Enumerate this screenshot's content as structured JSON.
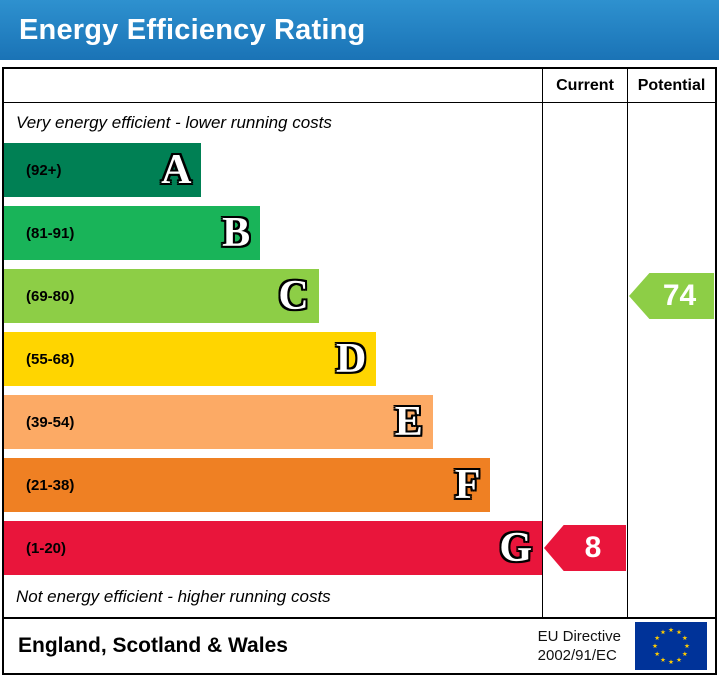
{
  "title": "Energy Efficiency Rating",
  "header": {
    "current_label": "Current",
    "potential_label": "Potential"
  },
  "notes": {
    "top": "Very energy efficient - lower running costs",
    "bottom": "Not energy efficient - higher running costs"
  },
  "chart_data": {
    "type": "bar",
    "subtype": "epc-energy-efficiency-rating",
    "bands": [
      {
        "letter": "A",
        "range": "(92+)",
        "color": "#008054",
        "width_pct": 36.7
      },
      {
        "letter": "B",
        "range": "(81-91)",
        "color": "#19b459",
        "width_pct": 47.6
      },
      {
        "letter": "C",
        "range": "(69-80)",
        "color": "#8dce46",
        "width_pct": 58.5
      },
      {
        "letter": "D",
        "range": "(55-68)",
        "color": "#ffd500",
        "width_pct": 69.2
      },
      {
        "letter": "E",
        "range": "(39-54)",
        "color": "#fcaa65",
        "width_pct": 79.7
      },
      {
        "letter": "F",
        "range": "(21-38)",
        "color": "#ef8023",
        "width_pct": 90.4
      },
      {
        "letter": "G",
        "range": "(1-20)",
        "color": "#e9153b",
        "width_pct": 100
      }
    ],
    "current": {
      "value": "8",
      "band": "G",
      "color": "#e9153b"
    },
    "potential": {
      "value": "74",
      "band": "C",
      "color": "#8dce46"
    }
  },
  "footer": {
    "region": "England, Scotland & Wales",
    "directive_line1": "EU Directive",
    "directive_line2": "2002/91/EC",
    "flag_colors": {
      "field": "#003399",
      "stars": "#ffcc00"
    }
  },
  "colors": {
    "title_bar_bg": "#1d7dc4"
  }
}
